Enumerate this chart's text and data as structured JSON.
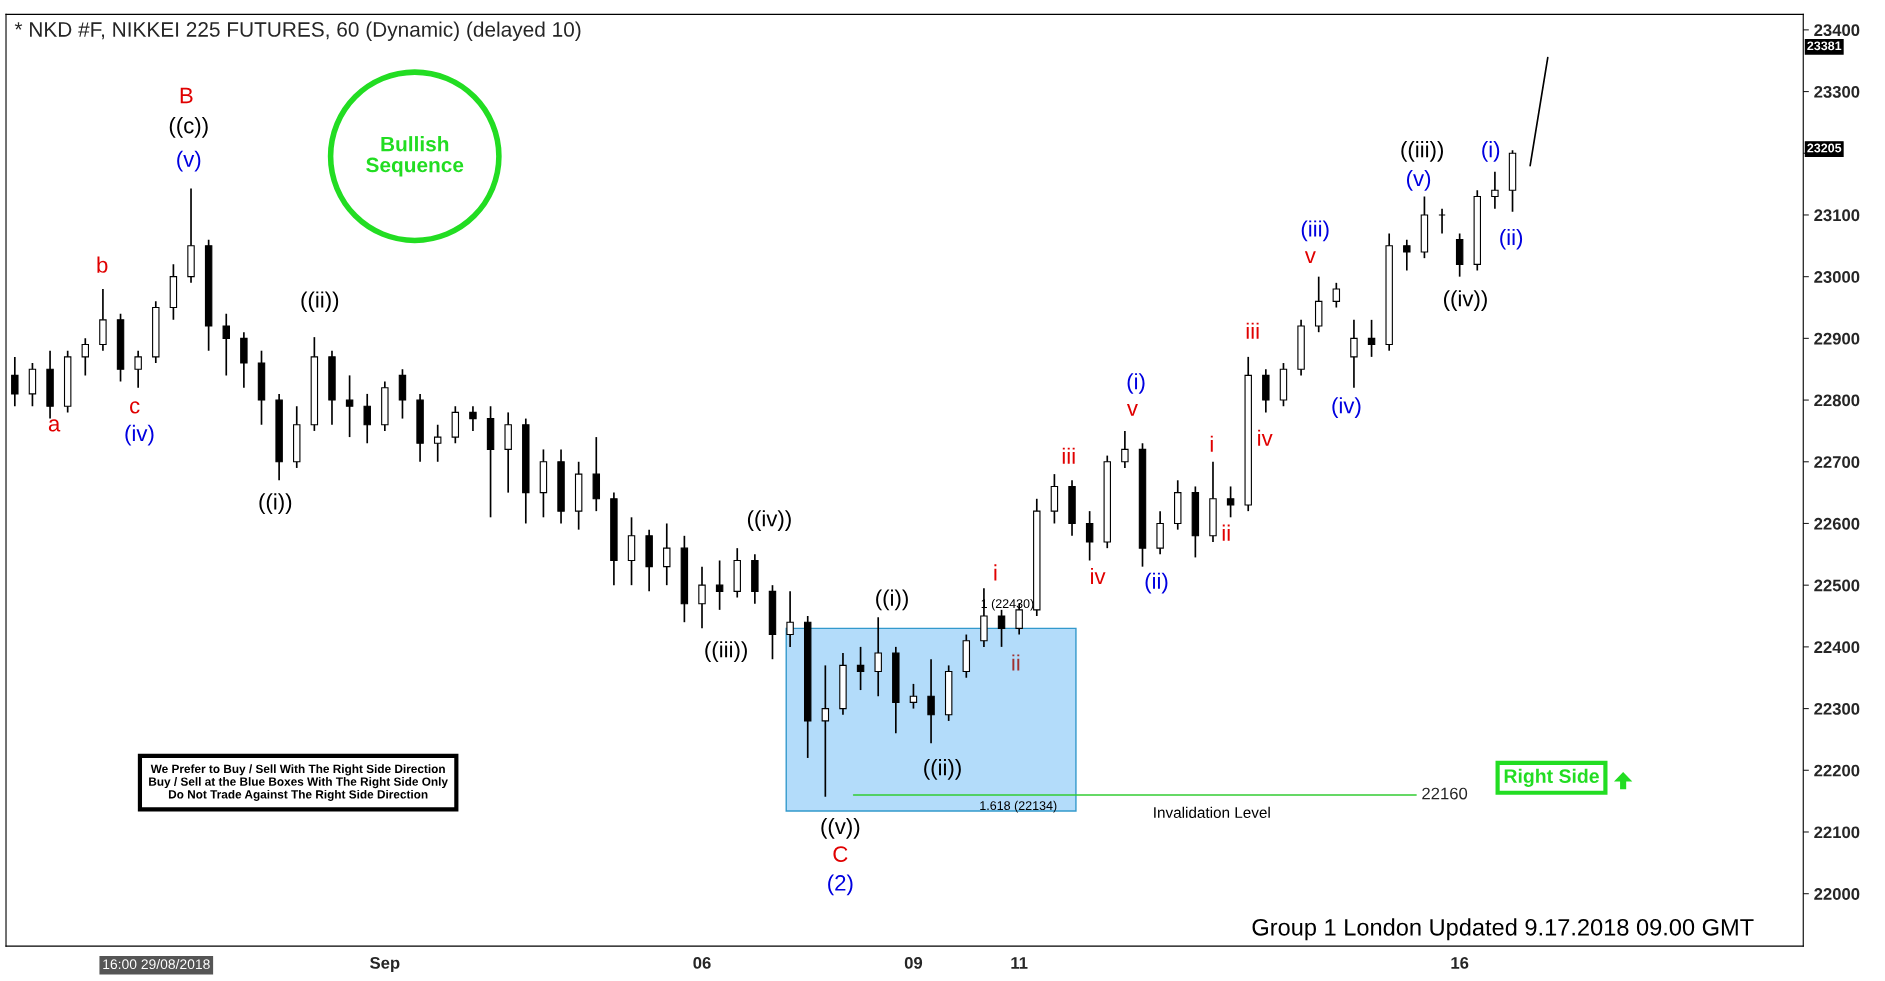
{
  "chart_data": {
    "type": "candlestick",
    "title": "* NKD #F, NIKKEI 225 FUTURES, 60 (Dynamic) (delayed 10)",
    "categories": [
      null,
      null,
      null,
      null,
      null,
      null,
      null,
      null,
      null,
      null,
      null,
      null,
      null,
      null,
      null,
      null,
      null,
      null,
      null,
      null,
      null,
      "Sep",
      null,
      null,
      null,
      null,
      null,
      null,
      null,
      null,
      null,
      null,
      null,
      null,
      null,
      null,
      null,
      null,
      null,
      "06",
      null,
      null,
      null,
      null,
      null,
      null,
      null,
      null,
      null,
      null,
      null,
      "09",
      null,
      null,
      null,
      null,
      null,
      "11",
      null,
      null,
      null,
      null,
      null,
      null,
      null,
      null,
      null,
      null,
      null,
      null,
      null,
      null,
      null,
      null,
      null,
      null,
      null,
      null,
      null,
      null,
      null,
      null,
      "16",
      null,
      null,
      null,
      null,
      null,
      null,
      null,
      null,
      null,
      null,
      null,
      null,
      null,
      null,
      null,
      null,
      null,
      null,
      null
    ],
    "ohlc": [
      [
        22840,
        22870,
        22790,
        22810
      ],
      [
        22810,
        22860,
        22790,
        22850
      ],
      [
        22850,
        22880,
        22770,
        22790
      ],
      [
        22790,
        22880,
        22780,
        22870
      ],
      [
        22870,
        22900,
        22840,
        22890
      ],
      [
        22890,
        22980,
        22880,
        22930
      ],
      [
        22930,
        22940,
        22830,
        22850
      ],
      [
        22850,
        22880,
        22820,
        22870
      ],
      [
        22870,
        22960,
        22860,
        22950
      ],
      [
        22950,
        23020,
        22930,
        23000
      ],
      [
        23000,
        23143,
        22990,
        23050
      ],
      [
        23050,
        23060,
        22880,
        22920
      ],
      [
        22920,
        22940,
        22840,
        22900
      ],
      [
        22900,
        22910,
        22820,
        22860
      ],
      [
        22860,
        22880,
        22760,
        22800
      ],
      [
        22800,
        22810,
        22670,
        22700
      ],
      [
        22700,
        22790,
        22690,
        22760
      ],
      [
        22760,
        22902,
        22750,
        22870
      ],
      [
        22870,
        22880,
        22760,
        22800
      ],
      [
        22800,
        22840,
        22740,
        22790
      ],
      [
        22790,
        22810,
        22730,
        22760
      ],
      [
        22760,
        22830,
        22750,
        22820
      ],
      [
        22840,
        22850,
        22770,
        22800
      ],
      [
        22800,
        22810,
        22700,
        22730
      ],
      [
        22730,
        22760,
        22700,
        22740
      ],
      [
        22740,
        22790,
        22730,
        22780
      ],
      [
        22780,
        22790,
        22750,
        22770
      ],
      [
        22770,
        22790,
        22610,
        22720
      ],
      [
        22720,
        22780,
        22650,
        22760
      ],
      [
        22760,
        22770,
        22600,
        22650
      ],
      [
        22650,
        22720,
        22610,
        22700
      ],
      [
        22700,
        22720,
        22600,
        22620
      ],
      [
        22620,
        22700,
        22590,
        22680
      ],
      [
        22680,
        22740,
        22620,
        22640
      ],
      [
        22640,
        22650,
        22500,
        22540
      ],
      [
        22540,
        22610,
        22500,
        22580
      ],
      [
        22580,
        22590,
        22490,
        22530
      ],
      [
        22530,
        22600,
        22500,
        22560
      ],
      [
        22560,
        22580,
        22440,
        22470
      ],
      [
        22470,
        22530,
        22430,
        22500
      ],
      [
        22500,
        22540,
        22460,
        22490
      ],
      [
        22490,
        22560,
        22480,
        22540
      ],
      [
        22540,
        22550,
        22470,
        22490
      ],
      [
        22490,
        22500,
        22380,
        22420
      ],
      [
        22420,
        22490,
        22400,
        22440
      ],
      [
        22440,
        22450,
        22220,
        22280
      ],
      [
        22280,
        22370,
        22157,
        22300
      ],
      [
        22300,
        22390,
        22290,
        22370
      ],
      [
        22370,
        22400,
        22330,
        22360
      ],
      [
        22360,
        22448,
        22320,
        22390
      ],
      [
        22390,
        22400,
        22260,
        22310
      ],
      [
        22310,
        22340,
        22300,
        22320
      ],
      [
        22320,
        22380,
        22244,
        22290
      ],
      [
        22290,
        22370,
        22280,
        22360
      ],
      [
        22360,
        22420,
        22350,
        22410
      ],
      [
        22410,
        22495,
        22400,
        22450
      ],
      [
        22450,
        22460,
        22400,
        22430
      ],
      [
        22430,
        22470,
        22420,
        22460
      ],
      [
        22460,
        22640,
        22450,
        22620
      ],
      [
        22620,
        22680,
        22600,
        22660
      ],
      [
        22660,
        22670,
        22580,
        22600
      ],
      [
        22600,
        22620,
        22540,
        22570
      ],
      [
        22570,
        22710,
        22560,
        22700
      ],
      [
        22700,
        22750,
        22690,
        22720
      ],
      [
        22720,
        22730,
        22530,
        22560
      ],
      [
        22560,
        22620,
        22550,
        22600
      ],
      [
        22600,
        22670,
        22590,
        22650
      ],
      [
        22650,
        22660,
        22545,
        22580
      ],
      [
        22580,
        22700,
        22570,
        22640
      ],
      [
        22640,
        22660,
        22610,
        22630
      ],
      [
        22630,
        22870,
        22620,
        22840
      ],
      [
        22840,
        22850,
        22780,
        22800
      ],
      [
        22800,
        22860,
        22790,
        22850
      ],
      [
        22850,
        22930,
        22840,
        22920
      ],
      [
        22920,
        23000,
        22910,
        22960
      ],
      [
        22960,
        22990,
        22950,
        22980
      ],
      [
        22870,
        22930,
        22820,
        22900
      ],
      [
        22900,
        22930,
        22870,
        22890
      ],
      [
        22890,
        23070,
        22880,
        23050
      ],
      [
        23050,
        23060,
        23010,
        23040
      ],
      [
        23040,
        23130,
        23030,
        23100
      ],
      [
        23100,
        23110,
        23070,
        23100
      ],
      [
        23060,
        23070,
        23000,
        23020
      ],
      [
        23020,
        23140,
        23010,
        23130
      ],
      [
        23130,
        23170,
        23110,
        23140
      ],
      [
        23140,
        23205,
        23105,
        23200
      ],
      null,
      null,
      null,
      null,
      null,
      null,
      null,
      null,
      null,
      null,
      null,
      null,
      null,
      null,
      null,
      null
    ],
    "series": [
      {
        "type": "line",
        "color": "#000000",
        "values": [
          null,
          null,
          null,
          null,
          null,
          null,
          null,
          null,
          null,
          null,
          null,
          null,
          null,
          null,
          null,
          null,
          null,
          null,
          null,
          null,
          null,
          null,
          null,
          null,
          null,
          null,
          null,
          null,
          null,
          null,
          null,
          null,
          null,
          null,
          null,
          null,
          null,
          null,
          null,
          null,
          null,
          null,
          null,
          null,
          null,
          null,
          null,
          null,
          null,
          null,
          null,
          null,
          null,
          null,
          null,
          null,
          null,
          null,
          null,
          null,
          null,
          null,
          null,
          null,
          null,
          null,
          null,
          null,
          null,
          null,
          null,
          null,
          null,
          null,
          null,
          null,
          null,
          null,
          null,
          null,
          null,
          null,
          null,
          null,
          null,
          null,
          23180,
          23355,
          null,
          null,
          null,
          null,
          null,
          null,
          null,
          null,
          null,
          null,
          null,
          null,
          null,
          null
        ]
      }
    ],
    "ylim": [
      21915,
      23425
    ],
    "yticks": [
      22000,
      22100,
      22200,
      22300,
      22400,
      22500,
      22600,
      22700,
      22800,
      22900,
      23000,
      23100,
      {
        "value": 23200,
        "label": null
      },
      23300,
      23400
    ],
    "grid": false,
    "bands": [
      {
        "axis": "y",
        "from": 22134,
        "to": 22430,
        "color": "#b3dcfa"
      }
    ],
    "ref_lines": [
      {
        "axis": "y",
        "value": 22160,
        "label": "22160",
        "color": "#33cc33"
      }
    ],
    "annotations": [
      "B",
      "((c))",
      "(v)",
      "b",
      "a",
      "c",
      "(iv)",
      "((ii))",
      "((i))",
      "((iv))",
      "((iii))",
      "((i))",
      "((ii))",
      "((v))",
      "C",
      "(2)",
      "i",
      "ii",
      "iii",
      "iv",
      "v",
      "(i)",
      "(ii)",
      "i",
      "ii",
      "iii",
      "iv",
      "v",
      "(iii)",
      "(iv)",
      "((iii))",
      "(v)",
      "(i)",
      "(ii)",
      "((iv))",
      "Bullish\nSequence",
      "Right Side",
      "We Prefer to Buy / Sell With The Right Side Direction\nBuy / Sell at the Blue Boxes With The Right Side Only\nDo Not Trade Against The Right Side Direction",
      "Invalidation Level",
      "1.618 (22134)",
      "1 (22430)",
      "23381",
      "23205",
      "Group 1 London Updated 9.17.2018 09.00 GMT",
      "16:00 29/08/2018"
    ]
  }
}
